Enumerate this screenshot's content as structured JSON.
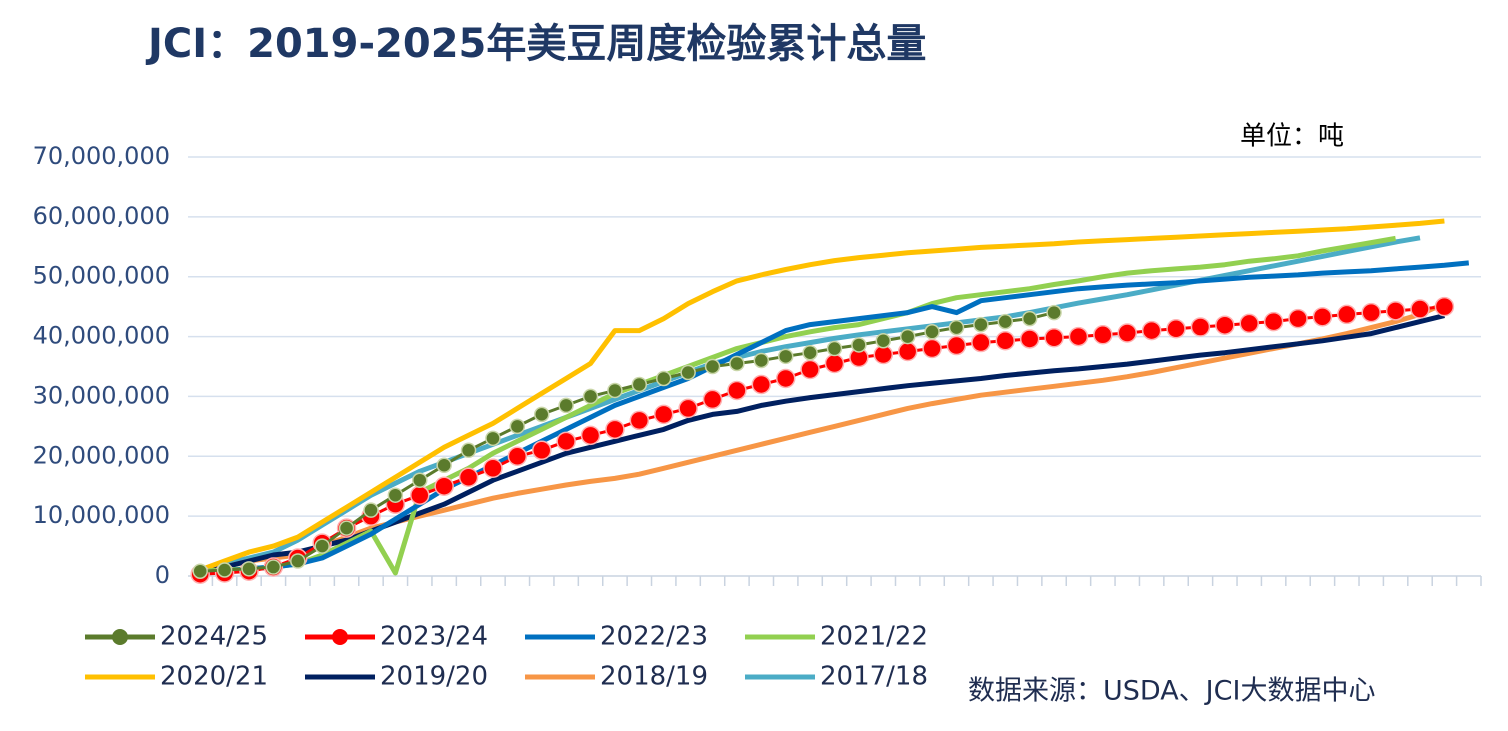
{
  "chart_data": {
    "type": "line",
    "title": "JCI：2019-2025年美豆周度检验累计总量",
    "unit_label": "单位：吨",
    "source": "数据来源：USDA、JCI大数据中心",
    "categories": [
      null,
      null,
      null,
      null,
      null,
      null,
      null,
      null,
      null,
      null,
      null,
      null,
      null,
      null,
      null,
      null,
      null,
      null,
      null,
      null,
      null,
      null,
      null,
      null,
      null,
      null,
      null,
      null,
      null,
      null,
      null,
      null,
      null,
      null,
      null,
      null,
      null,
      null,
      null,
      null,
      null,
      null,
      null,
      null,
      null,
      null,
      null,
      null,
      null,
      null,
      null,
      null,
      null
    ],
    "ylim": [
      0,
      70000000.0
    ],
    "yticks": [
      0,
      {
        "value": 10000000.0,
        "label": "10,000,000"
      },
      {
        "value": 20000000.0,
        "label": "20,000,000"
      },
      {
        "value": 30000000.0,
        "label": "30,000,000"
      },
      {
        "value": 40000000.0,
        "label": "40,000,000"
      },
      {
        "value": 50000000.0,
        "label": "50,000,000"
      },
      {
        "value": 60000000.0,
        "label": "60,000,000"
      },
      {
        "value": 70000000.0,
        "label": "70,000,000"
      }
    ],
    "grid": true,
    "legend": "bottom",
    "series": [
      {
        "name": "2024/25",
        "color": "#5b7b2c",
        "marker": "circle",
        "values": [
          800000.0,
          1000000.0,
          1200000.0,
          1500000.0,
          2500000.0,
          5000000.0,
          8000000.0,
          11000000.0,
          13500000.0,
          16000000.0,
          18500000.0,
          21000000.0,
          23000000.0,
          25000000.0,
          27000000.0,
          28500000.0,
          30000000.0,
          31000000.0,
          32000000.0,
          33000000.0,
          34000000.0,
          35000000.0,
          35500000.0,
          36000000.0,
          36700000.0,
          37300000.0,
          38000000.0,
          38600000.0,
          39300000.0,
          40000000.0,
          40800000.0,
          41500000.0,
          42000000.0,
          42500000.0,
          43000000.0,
          44000000.0,
          null,
          null,
          null,
          null,
          null,
          null,
          null,
          null,
          null,
          null,
          null,
          null,
          null,
          null,
          null,
          null,
          null
        ]
      },
      {
        "name": "2023/24",
        "color": "#ff0000",
        "marker": "circle",
        "values": [
          300000.0,
          500000.0,
          800000.0,
          1500000.0,
          3000000.0,
          5500000.0,
          8000000.0,
          10000000.0,
          12000000.0,
          13500000.0,
          15000000.0,
          16500000.0,
          18000000.0,
          20000000.0,
          21000000.0,
          22500000.0,
          23500000.0,
          24500000.0,
          26000000.0,
          27000000.0,
          28000000.0,
          29500000.0,
          31000000.0,
          32000000.0,
          33000000.0,
          34500000.0,
          35500000.0,
          36500000.0,
          37000000.0,
          37500000.0,
          38000000.0,
          38500000.0,
          39000000.0,
          39300000.0,
          39600000.0,
          39800000.0,
          40000000.0,
          40300000.0,
          40600000.0,
          41000000.0,
          41300000.0,
          41600000.0,
          41900000.0,
          42200000.0,
          42500000.0,
          43000000.0,
          43300000.0,
          43700000.0,
          44000000.0,
          44300000.0,
          44600000.0,
          45000000.0,
          null
        ]
      },
      {
        "name": "2022/23",
        "color": "#0070c0",
        "values": [
          500000.0,
          800000.0,
          1200000.0,
          1500000.0,
          2000000.0,
          3000000.0,
          5000000.0,
          7000000.0,
          9500000.0,
          12000000.0,
          14500000.0,
          16500000.0,
          18500000.0,
          20500000.0,
          22500000.0,
          24500000.0,
          26500000.0,
          28500000.0,
          30000000.0,
          31500000.0,
          33000000.0,
          35000000.0,
          37000000.0,
          39000000.0,
          41000000.0,
          42000000.0,
          42500000.0,
          43000000.0,
          43500000.0,
          44000000.0,
          45000000.0,
          44000000.0,
          46000000.0,
          46500000.0,
          47000000.0,
          47500000.0,
          48000000.0,
          48300000.0,
          48600000.0,
          48800000.0,
          49000000.0,
          49300000.0,
          49600000.0,
          49900000.0,
          50100000.0,
          50300000.0,
          50600000.0,
          50800000.0,
          51000000.0,
          51300000.0,
          51600000.0,
          51900000.0,
          52300000.0
        ]
      },
      {
        "name": "2021/22",
        "color": "#92d050",
        "values": [
          800000.0,
          1000000.0,
          1200000.0,
          1500000.0,
          2000000.0,
          3500000.0,
          5500000.0,
          7500000.0,
          500000.0,
          14000000.0,
          16000000.0,
          18000000.0,
          20500000.0,
          22500000.0,
          24500000.0,
          26500000.0,
          28500000.0,
          30500000.0,
          32000000.0,
          33500000.0,
          35000000.0,
          36500000.0,
          38000000.0,
          39000000.0,
          40000000.0,
          40800000.0,
          41500000.0,
          42000000.0,
          43000000.0,
          44000000.0,
          45500000.0,
          46500000.0,
          47000000.0,
          47500000.0,
          48000000.0,
          48700000.0,
          49300000.0,
          50000000.0,
          50600000.0,
          51000000.0,
          51300000.0,
          51600000.0,
          52000000.0,
          52600000.0,
          53000000.0,
          53500000.0,
          54300000.0,
          55000000.0,
          55700000.0,
          56400000.0,
          null,
          null,
          null
        ]
      },
      {
        "name": "2020/21",
        "color": "#ffc000",
        "values": [
          1000000.0,
          2500000.0,
          4000000.0,
          5000000.0,
          6500000.0,
          9000000.0,
          11500000.0,
          14000000.0,
          16500000.0,
          19000000.0,
          21500000.0,
          23500000.0,
          25500000.0,
          28000000.0,
          30500000.0,
          33000000.0,
          35500000.0,
          41000000.0,
          41000000.0,
          43000000.0,
          45500000.0,
          47500000.0,
          49300000.0,
          50300000.0,
          51200000.0,
          52000000.0,
          52700000.0,
          53200000.0,
          53600000.0,
          54000000.0,
          54300000.0,
          54600000.0,
          54900000.0,
          55100000.0,
          55300000.0,
          55500000.0,
          55800000.0,
          56000000.0,
          56200000.0,
          56400000.0,
          56600000.0,
          56800000.0,
          57000000.0,
          57200000.0,
          57400000.0,
          57600000.0,
          57800000.0,
          58000000.0,
          58300000.0,
          58600000.0,
          58900000.0,
          59300000.0,
          null
        ]
      },
      {
        "name": "2019/20",
        "color": "#002060",
        "values": [
          500000.0,
          1500000.0,
          2500000.0,
          3500000.0,
          4000000.0,
          5000000.0,
          6000000.0,
          7500000.0,
          9000000.0,
          10500000.0,
          12000000.0,
          14000000.0,
          16000000.0,
          17500000.0,
          19000000.0,
          20500000.0,
          21500000.0,
          22500000.0,
          23500000.0,
          24500000.0,
          26000000.0,
          27000000.0,
          27500000.0,
          28500000.0,
          29200000.0,
          29800000.0,
          30300000.0,
          30800000.0,
          31300000.0,
          31800000.0,
          32200000.0,
          32600000.0,
          33000000.0,
          33500000.0,
          33900000.0,
          34300000.0,
          34600000.0,
          35000000.0,
          35400000.0,
          35900000.0,
          36400000.0,
          36900000.0,
          37300000.0,
          37800000.0,
          38300000.0,
          38800000.0,
          39300000.0,
          39900000.0,
          40500000.0,
          41500000.0,
          42500000.0,
          43500000.0,
          null
        ]
      },
      {
        "name": "2018/19",
        "color": "#f79646",
        "values": [
          500000.0,
          1500000.0,
          2500000.0,
          3000000.0,
          3500000.0,
          5000000.0,
          6500000.0,
          8000000.0,
          9000000.0,
          10000000.0,
          11000000.0,
          12000000.0,
          13000000.0,
          13800000.0,
          14500000.0,
          15200000.0,
          15800000.0,
          16300000.0,
          17000000.0,
          18000000.0,
          19000000.0,
          20000000.0,
          21000000.0,
          22000000.0,
          23000000.0,
          24000000.0,
          25000000.0,
          26000000.0,
          27000000.0,
          28000000.0,
          28800000.0,
          29500000.0,
          30200000.0,
          30700000.0,
          31200000.0,
          31700000.0,
          32200000.0,
          32700000.0,
          33300000.0,
          34000000.0,
          34800000.0,
          35600000.0,
          36400000.0,
          37200000.0,
          38000000.0,
          38800000.0,
          39600000.0,
          40500000.0,
          41500000.0,
          42500000.0,
          43700000.0,
          45500000.0,
          null
        ]
      },
      {
        "name": "2017/18",
        "color": "#4bacc6",
        "values": [
          1000000.0,
          2000000.0,
          3000000.0,
          4000000.0,
          6000000.0,
          8500000.0,
          11000000.0,
          13500000.0,
          15500000.0,
          17500000.0,
          19000000.0,
          20500000.0,
          22000000.0,
          23500000.0,
          25000000.0,
          26500000.0,
          28000000.0,
          29500000.0,
          31000000.0,
          32500000.0,
          34000000.0,
          35500000.0,
          36500000.0,
          37500000.0,
          38300000.0,
          39000000.0,
          39700000.0,
          40300000.0,
          40800000.0,
          41300000.0,
          41800000.0,
          42300000.0,
          42800000.0,
          43300000.0,
          44000000.0,
          44800000.0,
          45600000.0,
          46300000.0,
          47000000.0,
          47800000.0,
          48600000.0,
          49400000.0,
          50200000.0,
          51000000.0,
          51800000.0,
          52600000.0,
          53400000.0,
          54200000.0,
          55000000.0,
          55800000.0,
          56500000.0,
          null,
          null
        ]
      }
    ]
  }
}
